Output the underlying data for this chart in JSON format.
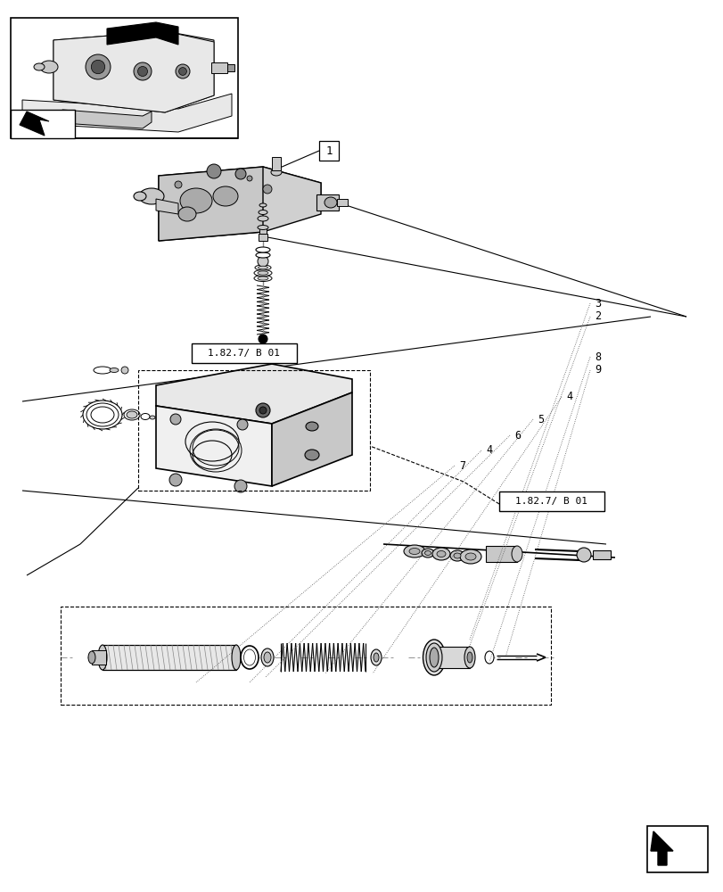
{
  "bg_color": "#ffffff",
  "line_color": "#000000",
  "ref_label_1": "1.82.7/ B 01",
  "ref_label_2": "1.82.7/ B 01",
  "part_label_1": "1",
  "part_numbers": [
    "3",
    "2",
    "8",
    "9",
    "4",
    "5",
    "6",
    "4",
    "7"
  ],
  "gray_light": "#e8e8e8",
  "gray_mid": "#c8c8c8",
  "gray_dark": "#999999",
  "lw_main": 1.0,
  "lw_thin": 0.6,
  "lw_thick": 1.4
}
